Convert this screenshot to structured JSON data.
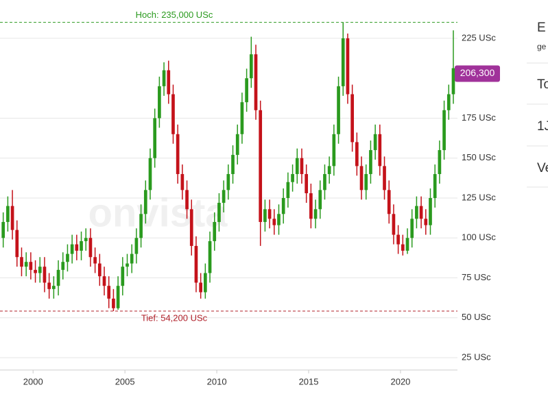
{
  "chart_data": {
    "type": "candlestick",
    "watermark": "onvista",
    "x": [
      1998.25,
      1998.5,
      1998.75,
      1999,
      1999.25,
      1999.5,
      1999.75,
      2000,
      2000.25,
      2000.5,
      2000.75,
      2001,
      2001.25,
      2001.5,
      2001.75,
      2002,
      2002.25,
      2002.5,
      2002.75,
      2003,
      2003.25,
      2003.5,
      2003.75,
      2004,
      2004.25,
      2004.5,
      2004.75,
      2005,
      2005.25,
      2005.5,
      2005.75,
      2006,
      2006.25,
      2006.5,
      2006.75,
      2007,
      2007.25,
      2007.5,
      2007.75,
      2008,
      2008.25,
      2008.5,
      2008.75,
      2009,
      2009.25,
      2009.5,
      2009.75,
      2010,
      2010.25,
      2010.5,
      2010.75,
      2011,
      2011.25,
      2011.5,
      2011.75,
      2012,
      2012.25,
      2012.5,
      2012.75,
      2013,
      2013.25,
      2013.5,
      2013.75,
      2014,
      2014.25,
      2014.5,
      2014.75,
      2015,
      2015.25,
      2015.5,
      2015.75,
      2016,
      2016.25,
      2016.5,
      2016.75,
      2017,
      2017.25,
      2017.5,
      2017.75,
      2018,
      2018.25,
      2018.5,
      2018.75,
      2019,
      2019.25,
      2019.5,
      2019.75,
      2020,
      2020.25,
      2020.5,
      2020.75,
      2021,
      2021.25,
      2021.5,
      2021.75,
      2022,
      2022.25,
      2022.5,
      2022.75
    ],
    "open": [
      100,
      110,
      120,
      105,
      88,
      82,
      85,
      80,
      78,
      82,
      72,
      68,
      70,
      80,
      85,
      90,
      96,
      92,
      98,
      100,
      88,
      84,
      76,
      70,
      62,
      56,
      70,
      82,
      84,
      90,
      100,
      115,
      130,
      150,
      175,
      195,
      205,
      190,
      165,
      140,
      130,
      118,
      95,
      72,
      66,
      78,
      98,
      110,
      122,
      130,
      140,
      152,
      165,
      185,
      200,
      215,
      180,
      110,
      118,
      112,
      108,
      115,
      125,
      135,
      140,
      150,
      140,
      128,
      112,
      118,
      130,
      140,
      145,
      165,
      195,
      225,
      190,
      160,
      145,
      130,
      140,
      155,
      165,
      145,
      130,
      115,
      102,
      96,
      92,
      100,
      112,
      120,
      112,
      108,
      125,
      140,
      155,
      180,
      190
    ],
    "high": [
      116,
      126,
      130,
      111,
      94,
      91,
      91,
      86,
      88,
      88,
      78,
      76,
      86,
      91,
      96,
      102,
      102,
      104,
      106,
      106,
      94,
      90,
      82,
      76,
      68,
      76,
      88,
      90,
      96,
      106,
      121,
      136,
      156,
      181,
      201,
      210,
      211,
      196,
      171,
      146,
      136,
      124,
      101,
      78,
      84,
      104,
      116,
      128,
      136,
      146,
      158,
      171,
      191,
      206,
      226,
      221,
      186,
      124,
      124,
      118,
      121,
      131,
      141,
      146,
      156,
      156,
      146,
      134,
      124,
      136,
      146,
      151,
      171,
      201,
      235,
      228,
      196,
      166,
      151,
      146,
      161,
      171,
      171,
      151,
      136,
      121,
      108,
      102,
      106,
      118,
      126,
      126,
      118,
      131,
      146,
      161,
      186,
      196,
      230
    ],
    "low": [
      94,
      104,
      99,
      82,
      76,
      76,
      74,
      72,
      72,
      66,
      62,
      62,
      64,
      74,
      79,
      84,
      86,
      86,
      92,
      82,
      78,
      70,
      64,
      56,
      54.2,
      55,
      64,
      76,
      78,
      84,
      94,
      109,
      124,
      144,
      169,
      189,
      184,
      159,
      134,
      124,
      112,
      89,
      66,
      62,
      62,
      72,
      92,
      104,
      116,
      124,
      134,
      146,
      159,
      179,
      194,
      174,
      95,
      104,
      106,
      102,
      102,
      109,
      119,
      129,
      134,
      134,
      122,
      106,
      106,
      112,
      124,
      134,
      139,
      159,
      189,
      184,
      154,
      139,
      124,
      124,
      134,
      149,
      139,
      124,
      109,
      96,
      90,
      89,
      90,
      94,
      106,
      106,
      102,
      102,
      119,
      134,
      149,
      174,
      184
    ],
    "close": [
      110,
      120,
      105,
      88,
      82,
      85,
      80,
      78,
      82,
      72,
      68,
      70,
      80,
      85,
      90,
      96,
      92,
      98,
      100,
      88,
      84,
      76,
      70,
      62,
      56,
      70,
      82,
      84,
      90,
      100,
      115,
      130,
      150,
      175,
      195,
      205,
      190,
      165,
      140,
      130,
      118,
      95,
      72,
      66,
      78,
      98,
      110,
      122,
      130,
      140,
      152,
      165,
      185,
      200,
      215,
      180,
      110,
      118,
      112,
      108,
      115,
      125,
      135,
      140,
      150,
      140,
      128,
      112,
      118,
      130,
      140,
      145,
      165,
      195,
      225,
      190,
      160,
      145,
      130,
      140,
      155,
      165,
      145,
      130,
      115,
      102,
      96,
      92,
      100,
      112,
      120,
      112,
      108,
      125,
      140,
      155,
      180,
      190,
      206.3
    ],
    "up_color": "#2a9a1e",
    "down_color": "#c4121a",
    "xlim": [
      1998.2,
      2023.1
    ],
    "xticks": [
      2000,
      2005,
      2010,
      2015,
      2020
    ],
    "ylim": [
      17.3,
      249
    ],
    "yticks": [
      {
        "value": 25,
        "label": "25 USc"
      },
      {
        "value": 50,
        "label": "50 USc"
      },
      {
        "value": 75,
        "label": "75 USc"
      },
      {
        "value": 100,
        "label": "100 USc"
      },
      {
        "value": 125,
        "label": "125 USc"
      },
      {
        "value": 150,
        "label": "150 USc"
      },
      {
        "value": 175,
        "label": "175 USc"
      },
      {
        "value": 225,
        "label": "225 USc"
      }
    ],
    "grid": true,
    "high_line": {
      "value": 235,
      "label": "Hoch: 235,000 USc",
      "color": "#2a9a1e"
    },
    "low_line": {
      "value": 54.2,
      "label": "Tief: 54,200 USc",
      "color": "#b0202a"
    },
    "last_price": {
      "value": 206.3,
      "label": "206,300",
      "color": "#a0329a"
    }
  },
  "sidebar": {
    "items": [
      "E",
      "To",
      "1J",
      "Ve"
    ],
    "subtitle": "ge"
  }
}
